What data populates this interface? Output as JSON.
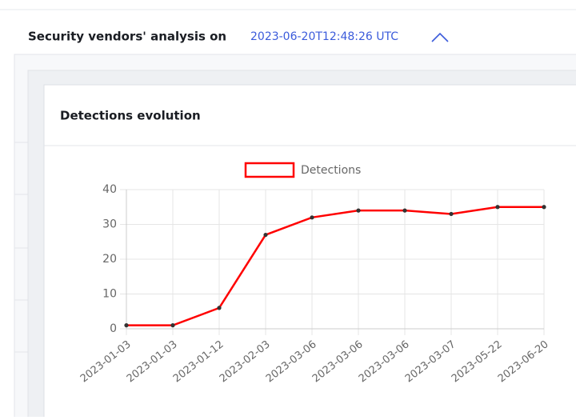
{
  "header": {
    "title": "Security vendors' analysis on",
    "date": "2023-06-20T12:48:26 UTC"
  },
  "card": {
    "title": "Detections evolution"
  },
  "chart_data": {
    "type": "line",
    "categories": [
      "2023-01-03",
      "2023-01-03",
      "2023-01-12",
      "2023-02-03",
      "2023-03-06",
      "2023-03-06",
      "2023-03-06",
      "2023-03-07",
      "2023-05-22",
      "2023-06-20"
    ],
    "series": [
      {
        "name": "Detections",
        "color": "#ff0000",
        "values": [
          1,
          1,
          6,
          27,
          32,
          34,
          34,
          33,
          35,
          35
        ]
      }
    ],
    "ylim": [
      0,
      40
    ],
    "yticks": [
      0,
      10,
      20,
      30,
      40
    ],
    "grid": true
  }
}
